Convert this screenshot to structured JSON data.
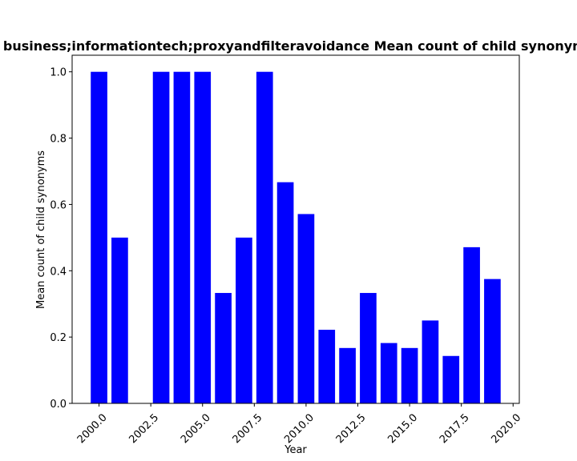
{
  "chart_data": {
    "type": "bar",
    "title": "to business;informationtech;proxyandfilteravoidance Mean count of child synonyms",
    "xlabel": "Year",
    "ylabel": "Mean count of child synonyms",
    "x": [
      2000,
      2001,
      2003,
      2004,
      2005,
      2006,
      2007,
      2008,
      2009,
      2010,
      2011,
      2012,
      2013,
      2014,
      2015,
      2016,
      2017,
      2018,
      2019
    ],
    "values": [
      1.0,
      0.5,
      1.0,
      1.0,
      1.0,
      0.333,
      0.5,
      1.0,
      0.667,
      0.571,
      0.222,
      0.167,
      0.333,
      0.182,
      0.167,
      0.25,
      0.143,
      0.471,
      0.375
    ],
    "xlim": [
      1998.7,
      2020.3
    ],
    "ylim": [
      0,
      1.05
    ],
    "xticks": [
      2000.0,
      2002.5,
      2005.0,
      2007.5,
      2010.0,
      2012.5,
      2015.0,
      2017.5,
      2020.0
    ],
    "xtick_labels": [
      "2000.0",
      "2002.5",
      "2005.0",
      "2007.5",
      "2010.0",
      "2012.5",
      "2015.0",
      "2017.5",
      "2020.0"
    ],
    "yticks": [
      0.0,
      0.2,
      0.4,
      0.6,
      0.8,
      1.0
    ],
    "ytick_labels": [
      "0.0",
      "0.2",
      "0.4",
      "0.6",
      "0.8",
      "1.0"
    ],
    "bar_width": 0.8,
    "bar_color": "#0000ff",
    "grid": false,
    "legend": "none"
  }
}
